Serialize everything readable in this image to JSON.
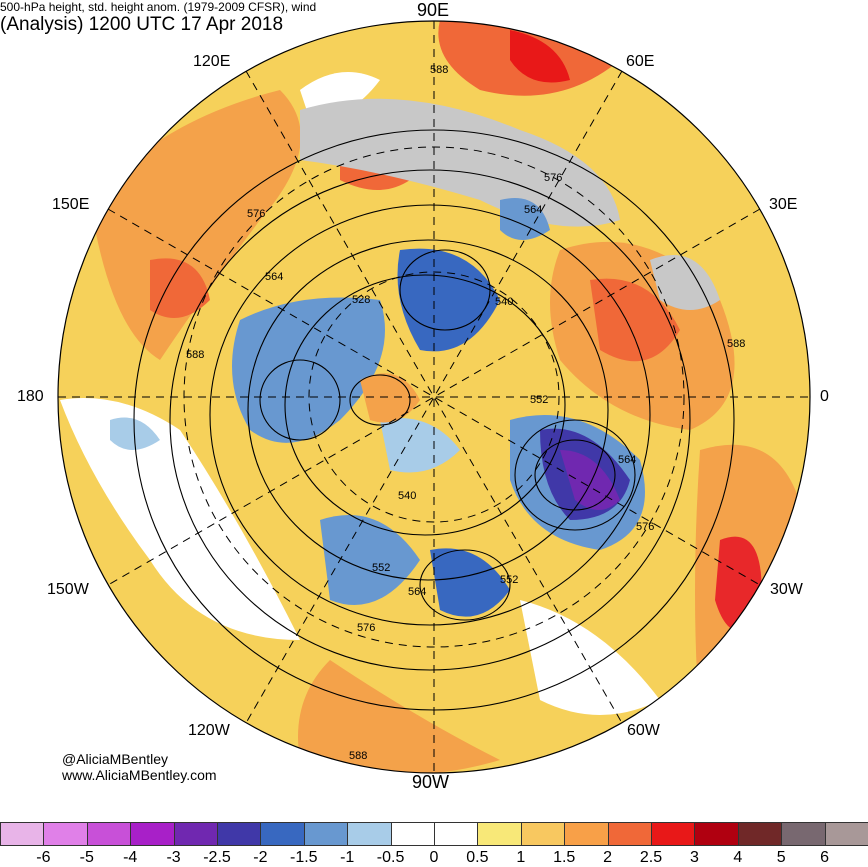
{
  "header": {
    "left_title": "500-hPa height, std. height anom. (1979-2009 CFSR), wind",
    "right_title": "(Analysis) 1200 UTC 17 Apr 2018"
  },
  "longitude_labels": {
    "lon_90e": "90E",
    "lon_120e": "120E",
    "lon_60e": "60E",
    "lon_150e": "150E",
    "lon_30e": "30E",
    "lon_180": "180",
    "lon_0": "0",
    "lon_150w": "150W",
    "lon_30w": "30W",
    "lon_120w": "120W",
    "lon_60w": "60W",
    "lon_90w": "90W"
  },
  "contour_labels": [
    "588",
    "576",
    "564",
    "528",
    "540",
    "588",
    "552",
    "564",
    "540",
    "576",
    "552",
    "564",
    "552",
    "576",
    "588",
    "588",
    "576",
    "564"
  ],
  "credits": {
    "handle": "@AliciaMBentley",
    "website": "www.AliciaMBentley.com"
  },
  "colorbar": {
    "colors": [
      "#e8b4e8",
      "#e080e8",
      "#c850d8",
      "#a820c8",
      "#7028b0",
      "#4038a8",
      "#3868c0",
      "#6898d0",
      "#a8cce8",
      "#ffffff",
      "#ffffff",
      "#f8e878",
      "#f8c860",
      "#f8a048",
      "#f06838",
      "#e81818",
      "#b00010",
      "#702828",
      "#786870",
      "#a89898"
    ],
    "labels": [
      "-6",
      "-5",
      "-4",
      "-3",
      "-2.5",
      "-2",
      "-1.5",
      "-1",
      "-0.5",
      "0",
      "0.5",
      "1",
      "1.5",
      "2",
      "2.5",
      "3",
      "4",
      "5",
      "6"
    ]
  },
  "colors": {
    "warm_anomaly": "#f4a24a",
    "strong_warm": "#e8282a",
    "cold_anomaly": "#3868c0",
    "land_gray": "#c8c8c8",
    "contour": "#000000"
  }
}
